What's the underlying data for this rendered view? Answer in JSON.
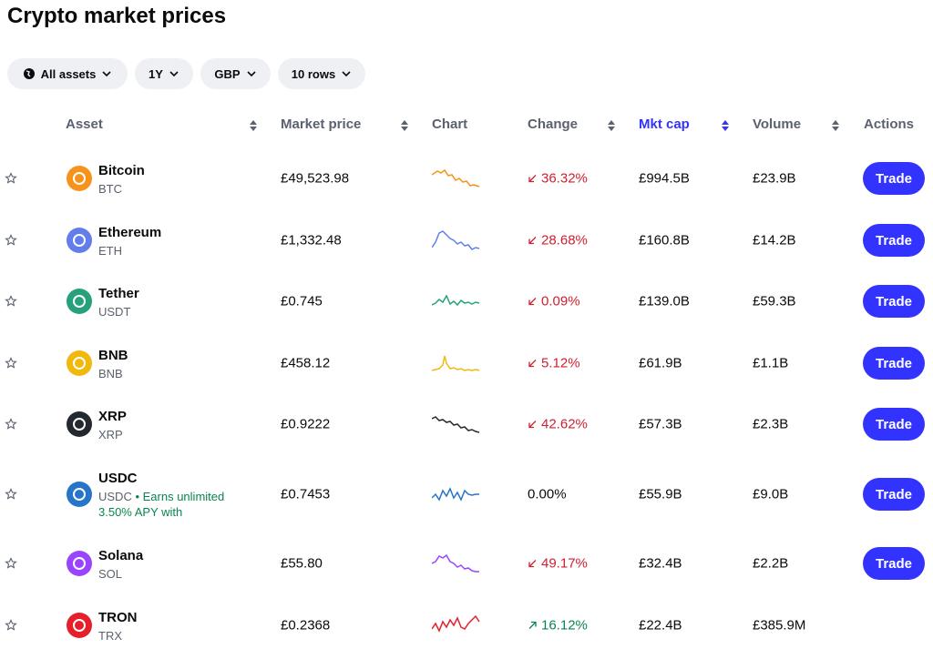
{
  "header": {
    "title": "Crypto market prices"
  },
  "filters": [
    "All assets",
    "1Y",
    "GBP",
    "10 rows"
  ],
  "table": {
    "columns": [
      "Asset",
      "Market price",
      "Chart",
      "Change",
      "Mkt cap",
      "Volume",
      "Actions"
    ],
    "sorted_column": 4,
    "rows": [
      {
        "name": "Bitcoin",
        "symbol": "BTC",
        "color": "#f7931a",
        "price": "£49,523.98",
        "change": "36.32%",
        "direction": "down",
        "mkt_cap": "£994.5B",
        "volume": "£23.9B",
        "action": "Trade"
      },
      {
        "name": "Ethereum",
        "symbol": "ETH",
        "color": "#627eea",
        "price": "£1,332.48",
        "change": "28.68%",
        "direction": "down",
        "mkt_cap": "£160.8B",
        "volume": "£14.2B",
        "action": "Trade"
      },
      {
        "name": "Tether",
        "symbol": "USDT",
        "color": "#26a17b",
        "price": "£0.745",
        "change": "0.09%",
        "direction": "down",
        "mkt_cap": "£139.0B",
        "volume": "£59.3B",
        "action": "Trade"
      },
      {
        "name": "BNB",
        "symbol": "BNB",
        "color": "#f0b90b",
        "price": "£458.12",
        "change": "5.12%",
        "direction": "down",
        "mkt_cap": "£61.9B",
        "volume": "£1.1B",
        "action": "Trade"
      },
      {
        "name": "XRP",
        "symbol": "XRP",
        "color": "#23292f",
        "price": "£0.9222",
        "change": "42.62%",
        "direction": "down",
        "mkt_cap": "£57.3B",
        "volume": "£2.3B",
        "action": "Trade"
      },
      {
        "name": "USDC",
        "symbol": "USDC",
        "note": "• Earns unlimited 3.50% APY with",
        "color": "#2775ca",
        "price": "£0.7453",
        "change": "0.00%",
        "direction": "flat",
        "mkt_cap": "£55.9B",
        "volume": "£9.0B",
        "action": "Trade"
      },
      {
        "name": "Solana",
        "symbol": "SOL",
        "color": "#9945ff",
        "price": "£55.80",
        "change": "49.17%",
        "direction": "down",
        "mkt_cap": "£32.4B",
        "volume": "£2.2B",
        "action": "Trade"
      },
      {
        "name": "TRON",
        "symbol": "TRX",
        "color": "#e5202b",
        "price": "£0.2368",
        "change": "16.12%",
        "direction": "up",
        "mkt_cap": "£22.4B",
        "volume": "£385.9M"
      }
    ]
  }
}
